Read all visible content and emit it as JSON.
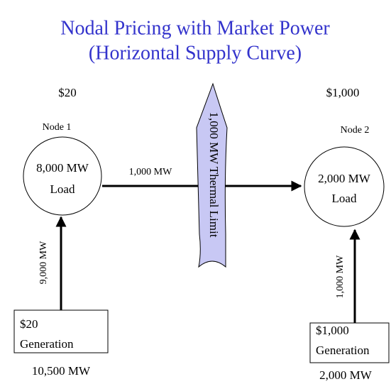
{
  "title": [
    "Nodal Pricing with Market Power",
    "(Horizontal Supply Curve)"
  ],
  "nodes": [
    {
      "price": "$20",
      "name": "Node 1",
      "load": [
        "8,000 MW",
        "Load"
      ],
      "flow": "9,000 MW",
      "generation": [
        "$20",
        "Generation"
      ],
      "capacity": "10,500 MW"
    },
    {
      "price": "$1,000",
      "name": "Node 2",
      "load": [
        "2,000 MW",
        "Load"
      ],
      "flow": "1,000 MW",
      "generation": [
        "$1,000",
        "Generation"
      ],
      "capacity": "2,000 MW"
    }
  ],
  "line": {
    "flow": "1,000 MW",
    "limit": "1,000 MW Thermal Limit"
  }
}
